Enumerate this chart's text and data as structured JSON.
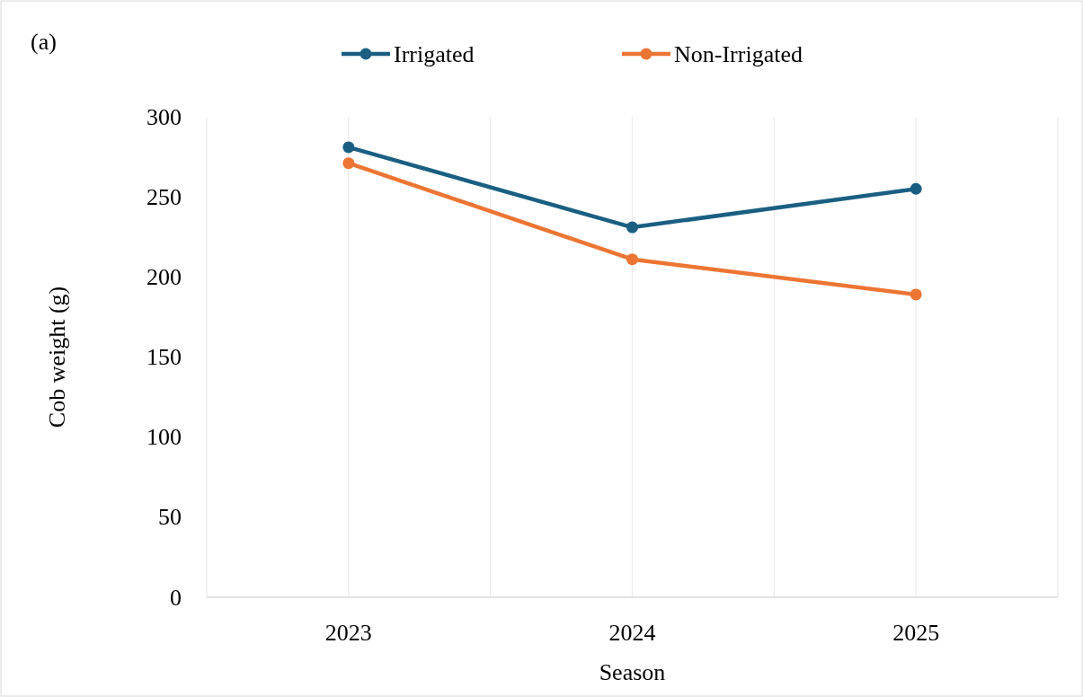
{
  "chart_data": {
    "type": "line",
    "xlabel": "Season",
    "ylabel": "Cob weight (g)",
    "annotations": [
      "(a)"
    ],
    "categories": [
      "2023",
      "2024",
      "2025"
    ],
    "series": [
      {
        "name": "Irrigated",
        "color": "#1a5f82",
        "values": [
          281,
          231,
          255
        ]
      },
      {
        "name": "Non-Irrigated",
        "color": "#ed7533",
        "values": [
          271,
          211,
          189
        ]
      }
    ],
    "ylim": [
      0,
      300
    ],
    "yticks": [
      0,
      50,
      100,
      150,
      200,
      250,
      300
    ],
    "grid": "x",
    "legend": "top",
    "marker": "circle",
    "line_style": "solid"
  }
}
